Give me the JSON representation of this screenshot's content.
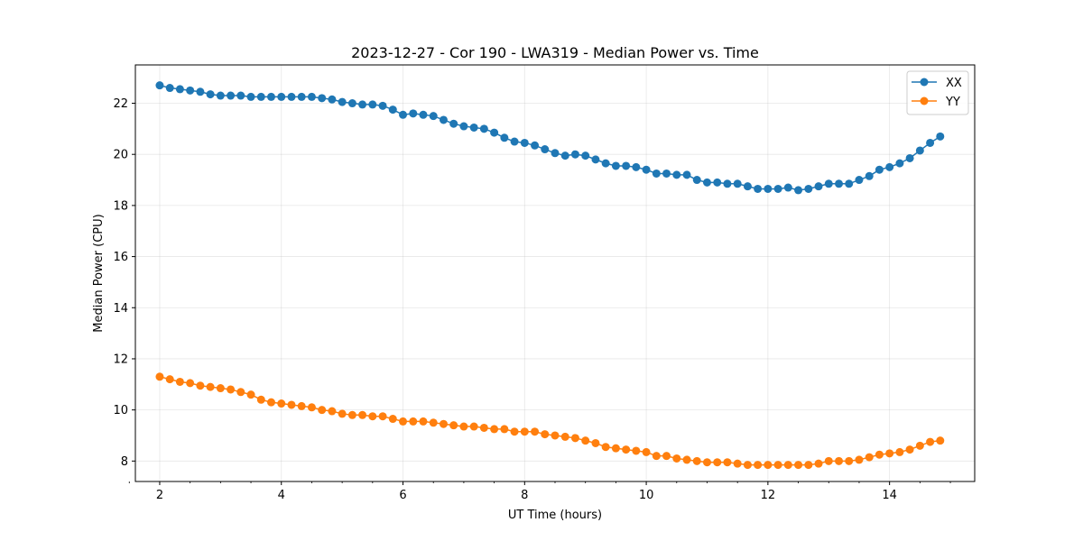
{
  "chart_data": {
    "type": "line",
    "title": "2023-12-27 - Cor 190 - LWA319 - Median Power vs. Time",
    "xlabel": "UT Time (hours)",
    "ylabel": "Median Power (CPU)",
    "xlim": [
      1.6,
      15.4
    ],
    "ylim": [
      7.2,
      23.5
    ],
    "xticks": [
      2,
      4,
      6,
      8,
      10,
      12,
      14
    ],
    "yticks": [
      8,
      10,
      12,
      14,
      16,
      18,
      20,
      22
    ],
    "grid": true,
    "legend_position": "top-right",
    "x": [
      2.0,
      2.167,
      2.333,
      2.5,
      2.667,
      2.833,
      3.0,
      3.167,
      3.333,
      3.5,
      3.667,
      3.833,
      4.0,
      4.167,
      4.333,
      4.5,
      4.667,
      4.833,
      5.0,
      5.167,
      5.333,
      5.5,
      5.667,
      5.833,
      6.0,
      6.167,
      6.333,
      6.5,
      6.667,
      6.833,
      7.0,
      7.167,
      7.333,
      7.5,
      7.667,
      7.833,
      8.0,
      8.167,
      8.333,
      8.5,
      8.667,
      8.833,
      9.0,
      9.167,
      9.333,
      9.5,
      9.667,
      9.833,
      10.0,
      10.167,
      10.333,
      10.5,
      10.667,
      10.833,
      11.0,
      11.167,
      11.333,
      11.5,
      11.667,
      11.833,
      12.0,
      12.167,
      12.333,
      12.5,
      12.667,
      12.833,
      13.0,
      13.167,
      13.333,
      13.5,
      13.667,
      13.833,
      14.0,
      14.167,
      14.333,
      14.5,
      14.667,
      14.833
    ],
    "series": [
      {
        "name": "XX",
        "color": "#1f77b4",
        "values": [
          22.7,
          22.6,
          22.55,
          22.5,
          22.45,
          22.35,
          22.3,
          22.3,
          22.3,
          22.25,
          22.25,
          22.25,
          22.25,
          22.25,
          22.25,
          22.25,
          22.2,
          22.15,
          22.05,
          22.0,
          21.95,
          21.95,
          21.9,
          21.75,
          21.55,
          21.6,
          21.55,
          21.5,
          21.35,
          21.2,
          21.1,
          21.05,
          21.0,
          20.85,
          20.65,
          20.5,
          20.45,
          20.35,
          20.2,
          20.05,
          19.95,
          20.0,
          19.95,
          19.8,
          19.65,
          19.55,
          19.55,
          19.5,
          19.4,
          19.25,
          19.25,
          19.2,
          19.2,
          19.0,
          18.9,
          18.9,
          18.85,
          18.85,
          18.75,
          18.65,
          18.65,
          18.65,
          18.7,
          18.6,
          18.65,
          18.75,
          18.85,
          18.85,
          18.85,
          19.0,
          19.15,
          19.4,
          19.5,
          19.65,
          19.85,
          20.15,
          20.45,
          20.7
        ]
      },
      {
        "name": "YY",
        "color": "#ff7f0e",
        "values": [
          11.3,
          11.2,
          11.1,
          11.05,
          10.95,
          10.9,
          10.85,
          10.8,
          10.7,
          10.6,
          10.4,
          10.3,
          10.25,
          10.2,
          10.15,
          10.1,
          10.0,
          9.95,
          9.85,
          9.8,
          9.8,
          9.75,
          9.75,
          9.65,
          9.55,
          9.55,
          9.55,
          9.5,
          9.45,
          9.4,
          9.35,
          9.35,
          9.3,
          9.25,
          9.25,
          9.15,
          9.15,
          9.15,
          9.05,
          9.0,
          8.95,
          8.9,
          8.8,
          8.7,
          8.55,
          8.5,
          8.45,
          8.4,
          8.35,
          8.2,
          8.2,
          8.1,
          8.05,
          8.0,
          7.95,
          7.95,
          7.95,
          7.9,
          7.85,
          7.85,
          7.85,
          7.85,
          7.85,
          7.85,
          7.85,
          7.9,
          8.0,
          8.0,
          8.0,
          8.05,
          8.15,
          8.25,
          8.3,
          8.35,
          8.45,
          8.6,
          8.75,
          8.8
        ]
      }
    ]
  }
}
